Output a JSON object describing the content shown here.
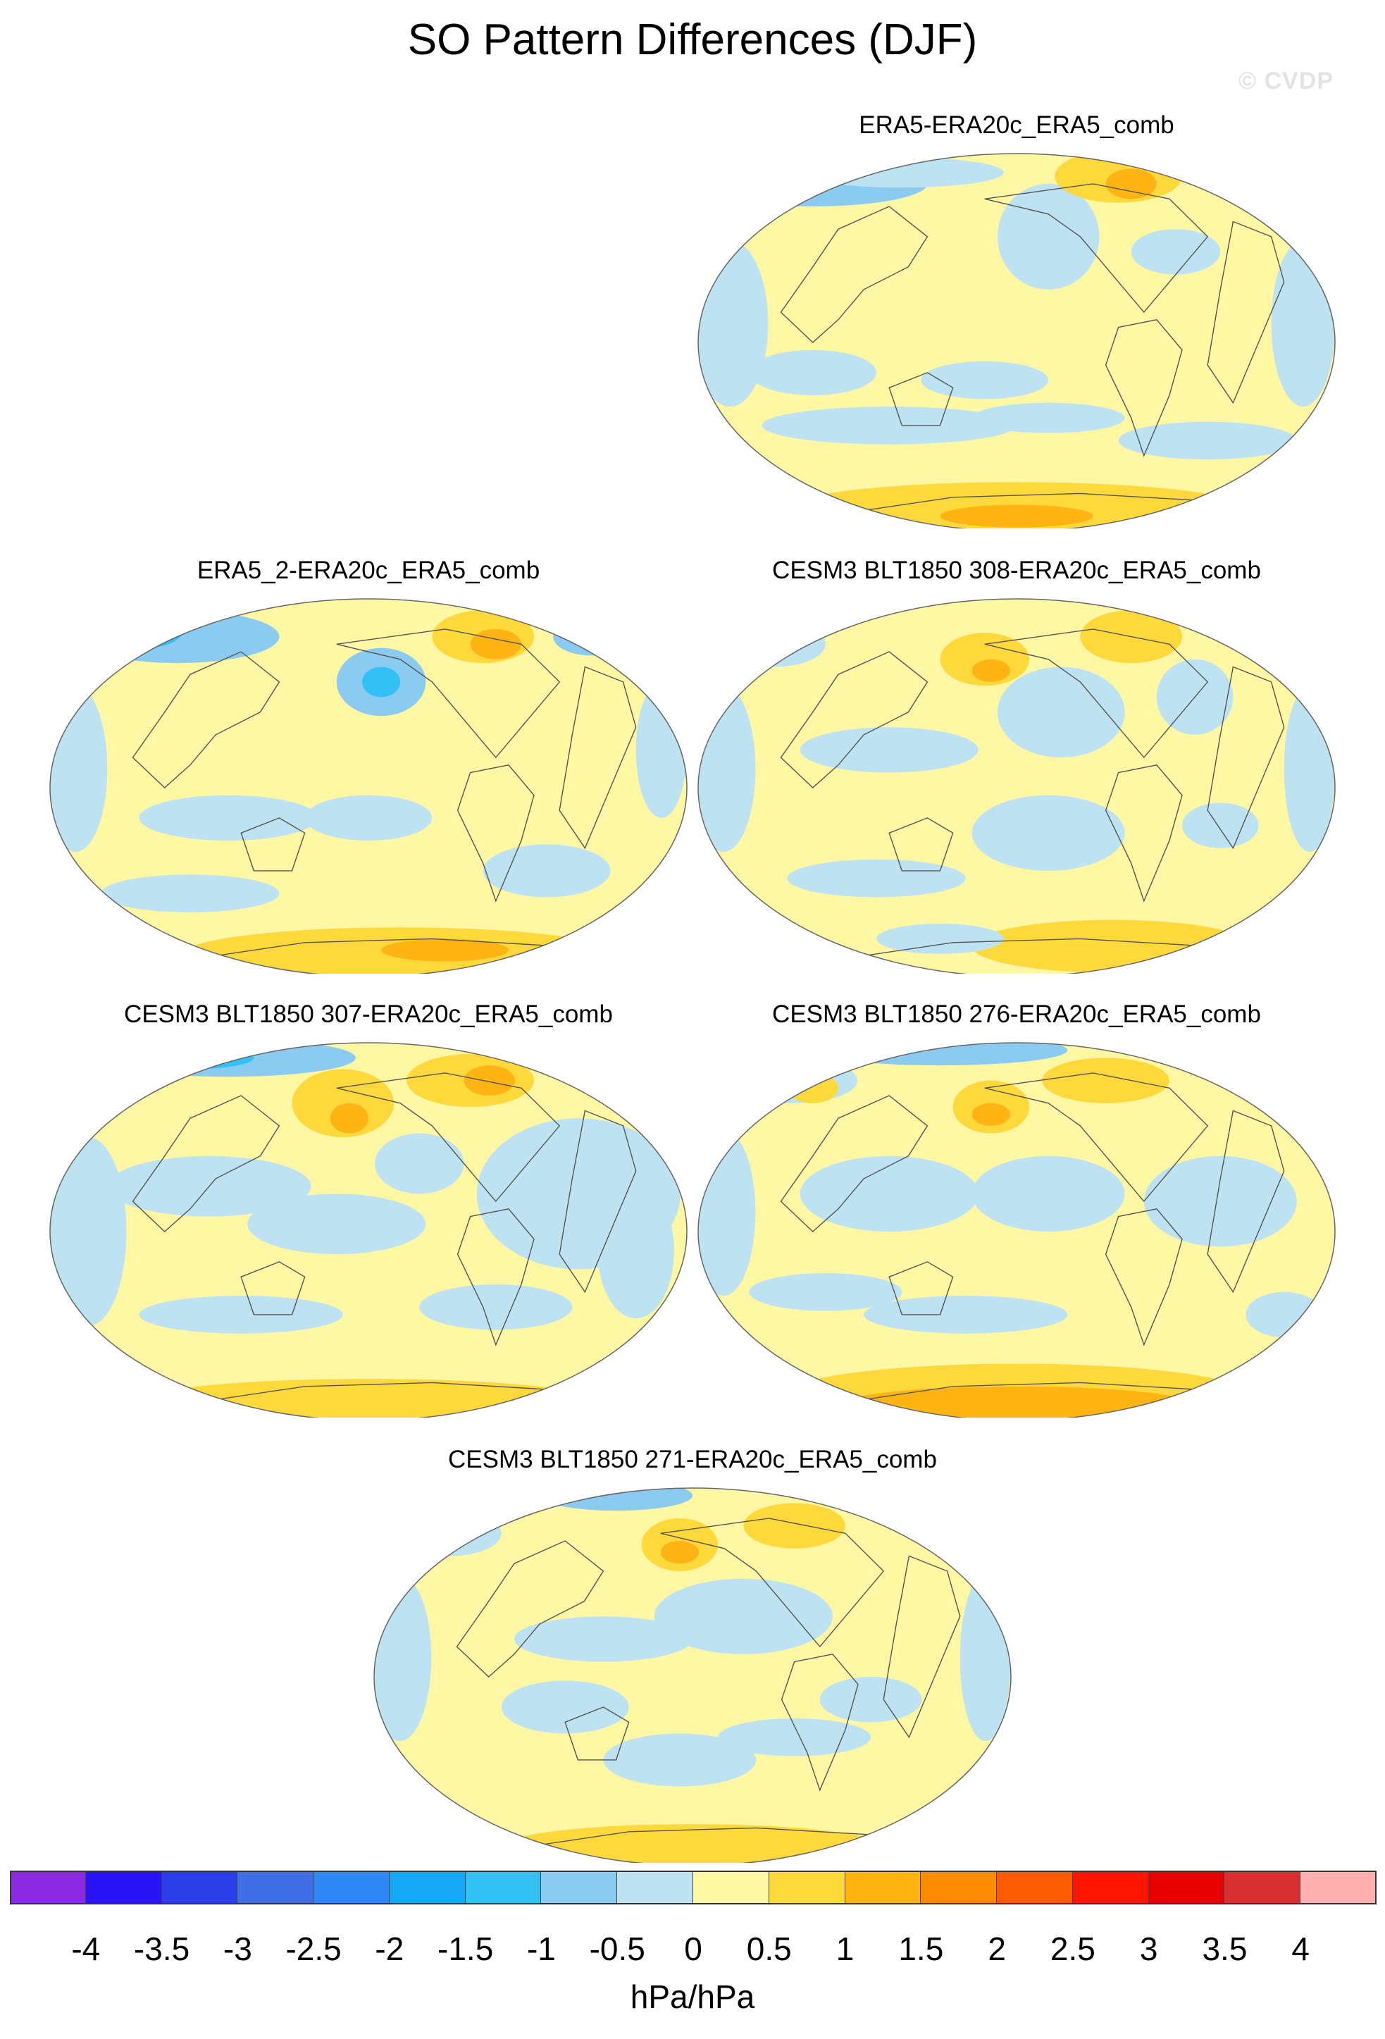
{
  "figure": {
    "title": "SO Pattern Differences (DJF)",
    "watermark": "© CVDP"
  },
  "chart_data": {
    "type": "heatmap",
    "projection": "Robinson (Pacific-centered)",
    "variable_label": "hPa/hPa",
    "panels": [
      {
        "title": "ERA5-ERA20c_ERA5_comb"
      },
      {
        "title": "ERA5_2-ERA20c_ERA5_comb"
      },
      {
        "title": "CESM3 BLT1850 308-ERA20c_ERA5_comb"
      },
      {
        "title": "CESM3 BLT1850 307-ERA20c_ERA5_comb"
      },
      {
        "title": "CESM3 BLT1850 276-ERA20c_ERA5_comb"
      },
      {
        "title": "CESM3 BLT1850 271-ERA20c_ERA5_comb"
      }
    ],
    "colorbar": {
      "ticks": [
        "-4",
        "-3.5",
        "-3",
        "-2.5",
        "-2",
        "-1.5",
        "-1",
        "-0.5",
        "0",
        "0.5",
        "1",
        "1.5",
        "2",
        "2.5",
        "3",
        "3.5",
        "4"
      ],
      "colors": [
        "#8a2be2",
        "#2a14f5",
        "#2a3ee8",
        "#3f6ee6",
        "#2f86f5",
        "#17a8f5",
        "#32c0f5",
        "#8ccbf0",
        "#bde2f2",
        "#fff7a3",
        "#ffd93b",
        "#ffb414",
        "#ff8c00",
        "#ff5a00",
        "#ff1400",
        "#e60000",
        "#d83030",
        "#ffb0b0"
      ]
    }
  }
}
